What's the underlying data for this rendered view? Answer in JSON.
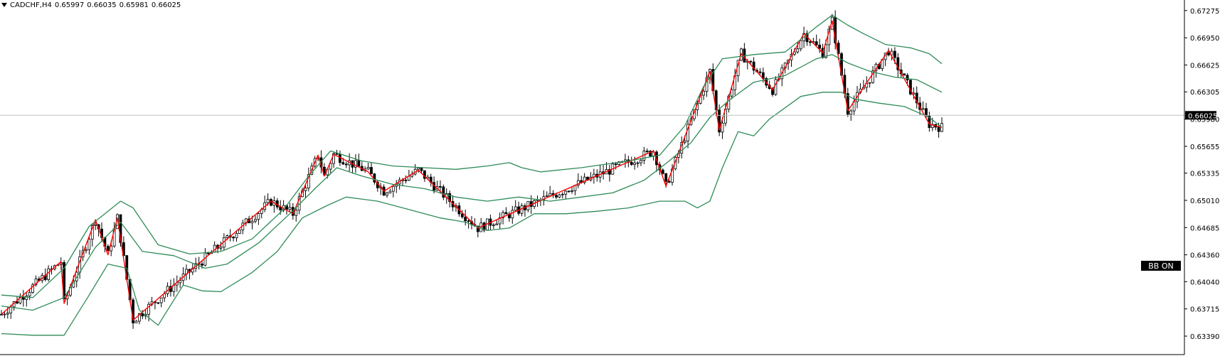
{
  "header": {
    "symbol": "CADCHF,H4",
    "open": "0.65997",
    "high": "0.66035",
    "low": "0.65981",
    "close": "0.66025"
  },
  "badge": {
    "label": "BB ON"
  },
  "colors": {
    "background": "#ffffff",
    "candle": "#000000",
    "bollinger": "#2e8b57",
    "zigzag": "#ff0000",
    "price_line": "#c0c0c0",
    "price_tag_bg": "#000000",
    "price_tag_fg": "#ffffff",
    "axis_line": "#000000"
  },
  "chart_data": {
    "type": "line",
    "instrument": "CADCHF",
    "timeframe": "H4",
    "ylim": [
      0.6328,
      0.6735
    ],
    "y_ticks": [
      "0.67275",
      "0.66950",
      "0.66625",
      "0.66305",
      "0.65980",
      "0.65655",
      "0.65335",
      "0.65010",
      "0.64685",
      "0.64360",
      "0.64040",
      "0.63715",
      "0.63390"
    ],
    "current_price": "0.66025",
    "bar_index_range": [
      0,
      300
    ],
    "series": [
      {
        "kind": "zigzag",
        "points": [
          [
            0,
            0.6365
          ],
          [
            19,
            0.6428
          ],
          [
            20,
            0.6378
          ],
          [
            30,
            0.6478
          ],
          [
            34,
            0.6436
          ],
          [
            37,
            0.648
          ],
          [
            42,
            0.6358
          ],
          [
            86,
            0.65
          ],
          [
            93,
            0.6485
          ],
          [
            101,
            0.6555
          ],
          [
            103,
            0.653
          ],
          [
            106,
            0.6556
          ],
          [
            117,
            0.6535
          ],
          [
            122,
            0.6512
          ],
          [
            133,
            0.6537
          ],
          [
            152,
            0.6468
          ],
          [
            208,
            0.656
          ],
          [
            212,
            0.6518
          ],
          [
            226,
            0.6655
          ],
          [
            229,
            0.6585
          ],
          [
            236,
            0.6676
          ],
          [
            246,
            0.6633
          ],
          [
            256,
            0.67
          ],
          [
            262,
            0.6677
          ],
          [
            265,
            0.6715
          ],
          [
            270,
            0.6608
          ],
          [
            283,
            0.668
          ],
          [
            296,
            0.6592
          ],
          [
            300,
            0.6588
          ]
        ]
      },
      {
        "kind": "bollinger_upper",
        "points": [
          [
            0,
            0.6388
          ],
          [
            10,
            0.6385
          ],
          [
            20,
            0.642
          ],
          [
            28,
            0.647
          ],
          [
            38,
            0.65
          ],
          [
            42,
            0.6492
          ],
          [
            50,
            0.6448
          ],
          [
            60,
            0.6437
          ],
          [
            70,
            0.644
          ],
          [
            80,
            0.6455
          ],
          [
            90,
            0.649
          ],
          [
            98,
            0.653
          ],
          [
            105,
            0.656
          ],
          [
            115,
            0.6548
          ],
          [
            125,
            0.6542
          ],
          [
            135,
            0.654
          ],
          [
            145,
            0.6538
          ],
          [
            155,
            0.6542
          ],
          [
            162,
            0.6546
          ],
          [
            166,
            0.654
          ],
          [
            172,
            0.6535
          ],
          [
            185,
            0.654
          ],
          [
            200,
            0.6548
          ],
          [
            210,
            0.6555
          ],
          [
            218,
            0.659
          ],
          [
            224,
            0.6637
          ],
          [
            230,
            0.667
          ],
          [
            240,
            0.6675
          ],
          [
            250,
            0.6678
          ],
          [
            260,
            0.6708
          ],
          [
            265,
            0.6722
          ],
          [
            270,
            0.671
          ],
          [
            275,
            0.67
          ],
          [
            282,
            0.6687
          ],
          [
            290,
            0.6683
          ],
          [
            296,
            0.6676
          ],
          [
            300,
            0.6664
          ]
        ]
      },
      {
        "kind": "bollinger_middle",
        "points": [
          [
            0,
            0.6375
          ],
          [
            10,
            0.637
          ],
          [
            20,
            0.6385
          ],
          [
            30,
            0.6445
          ],
          [
            38,
            0.6475
          ],
          [
            45,
            0.644
          ],
          [
            55,
            0.6435
          ],
          [
            65,
            0.642
          ],
          [
            72,
            0.6425
          ],
          [
            82,
            0.645
          ],
          [
            92,
            0.6485
          ],
          [
            100,
            0.6515
          ],
          [
            107,
            0.654
          ],
          [
            115,
            0.653
          ],
          [
            125,
            0.652
          ],
          [
            135,
            0.6515
          ],
          [
            145,
            0.6505
          ],
          [
            155,
            0.65
          ],
          [
            165,
            0.6505
          ],
          [
            175,
            0.65
          ],
          [
            185,
            0.6505
          ],
          [
            195,
            0.651
          ],
          [
            205,
            0.6525
          ],
          [
            212,
            0.6545
          ],
          [
            220,
            0.657
          ],
          [
            226,
            0.66
          ],
          [
            232,
            0.662
          ],
          [
            240,
            0.6642
          ],
          [
            250,
            0.665
          ],
          [
            260,
            0.667
          ],
          [
            265,
            0.6675
          ],
          [
            270,
            0.6665
          ],
          [
            277,
            0.6655
          ],
          [
            285,
            0.6648
          ],
          [
            292,
            0.6645
          ],
          [
            300,
            0.663
          ]
        ]
      },
      {
        "kind": "bollinger_lower",
        "points": [
          [
            0,
            0.6342
          ],
          [
            10,
            0.634
          ],
          [
            20,
            0.634
          ],
          [
            28,
            0.6388
          ],
          [
            34,
            0.6425
          ],
          [
            40,
            0.642
          ],
          [
            44,
            0.637
          ],
          [
            50,
            0.6352
          ],
          [
            58,
            0.64
          ],
          [
            64,
            0.6393
          ],
          [
            70,
            0.6392
          ],
          [
            80,
            0.6415
          ],
          [
            88,
            0.644
          ],
          [
            96,
            0.648
          ],
          [
            104,
            0.6495
          ],
          [
            110,
            0.6505
          ],
          [
            120,
            0.65
          ],
          [
            130,
            0.649
          ],
          [
            140,
            0.648
          ],
          [
            148,
            0.6475
          ],
          [
            155,
            0.6465
          ],
          [
            162,
            0.6468
          ],
          [
            170,
            0.6485
          ],
          [
            180,
            0.6485
          ],
          [
            190,
            0.6488
          ],
          [
            200,
            0.6492
          ],
          [
            210,
            0.65
          ],
          [
            218,
            0.65
          ],
          [
            222,
            0.6492
          ],
          [
            226,
            0.65
          ],
          [
            230,
            0.654
          ],
          [
            235,
            0.6583
          ],
          [
            240,
            0.6578
          ],
          [
            245,
            0.6598
          ],
          [
            255,
            0.6625
          ],
          [
            262,
            0.663
          ],
          [
            268,
            0.663
          ],
          [
            272,
            0.6622
          ],
          [
            280,
            0.6617
          ],
          [
            288,
            0.6613
          ],
          [
            296,
            0.66
          ],
          [
            300,
            0.6588
          ]
        ]
      }
    ]
  }
}
